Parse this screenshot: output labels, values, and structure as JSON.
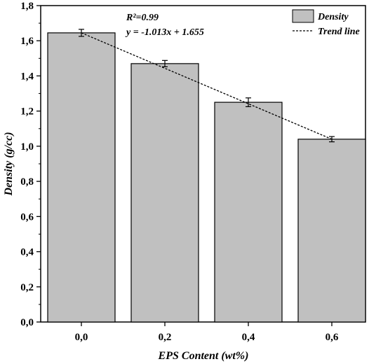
{
  "chart_data": {
    "type": "bar",
    "xlabel": "EPS Content (wt%)",
    "ylabel": "Density (g/cc)",
    "categories": [
      "0,0",
      "0,2",
      "0,4",
      "0,6"
    ],
    "values": [
      1.645,
      1.47,
      1.25,
      1.04
    ],
    "error": [
      0.02,
      0.018,
      0.025,
      0.015
    ],
    "ylim": [
      0,
      1.8
    ],
    "yticks": [
      "0,0",
      "0,2",
      "0,4",
      "0,6",
      "0,8",
      "1,0",
      "1,2",
      "1,4",
      "1,6",
      "1,8"
    ],
    "bar_color": "#c0c0c0",
    "trend_line": {
      "from": 1.645,
      "to": 1.04
    },
    "legend": {
      "position": "top-right",
      "bar_label": "Density",
      "line_label": "Trend line"
    },
    "annotations": {
      "r2": "R²=0.99",
      "equation": "y = -1.013x + 1.655"
    }
  }
}
